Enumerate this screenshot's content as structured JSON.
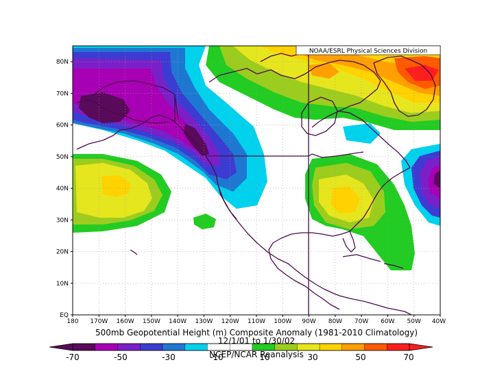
{
  "map": {
    "credit": "NOAA/ESRL Physical Sciences Division",
    "title_line1": "500mb Geopotential Height (m) Composite Anomaly (1981-2010 Climatology)",
    "title_line2": "12/1/01  to 1/30/02",
    "title_line3": "NCEP/NCAR Reanalysis",
    "extent": {
      "lon_min": -180,
      "lon_max": -40,
      "lat_min": 0,
      "lat_max": 85
    },
    "lat_ticks": [
      "EQ",
      "10N",
      "20N",
      "30N",
      "40N",
      "50N",
      "60N",
      "70N",
      "80N"
    ],
    "lon_ticks": [
      "180",
      "170W",
      "160W",
      "150W",
      "140W",
      "130W",
      "120W",
      "110W",
      "100W",
      "90W",
      "80W",
      "70W",
      "60W",
      "50W",
      "40W"
    ]
  },
  "colorbar": {
    "colors": [
      "#5a0a5a",
      "#a800b4",
      "#7a20c8",
      "#3c3cd2",
      "#1e78d2",
      "#00d2ee",
      "#ffffff",
      "#ffffff",
      "#22cc22",
      "#9ccd1e",
      "#e6e61e",
      "#ffd200",
      "#ffa000",
      "#ff5a00",
      "#ff1e1e"
    ],
    "labels": [
      "-70",
      "-50",
      "-30",
      "-10",
      "10",
      "30",
      "50",
      "70"
    ]
  },
  "contour_colors": {
    "c_m70": "#5a0a5a",
    "c_m60": "#a800b4",
    "c_m50": "#7a20c8",
    "c_m40": "#3c3cd2",
    "c_m30": "#1e78d2",
    "c_m20": "#00d2ee",
    "c_p20": "#22cc22",
    "c_p30": "#9ccd1e",
    "c_p40": "#e6e61e",
    "c_p50": "#ffd200",
    "c_p60": "#ffa000",
    "c_p70": "#ff5a00",
    "c_p80": "#ff1e1e"
  }
}
